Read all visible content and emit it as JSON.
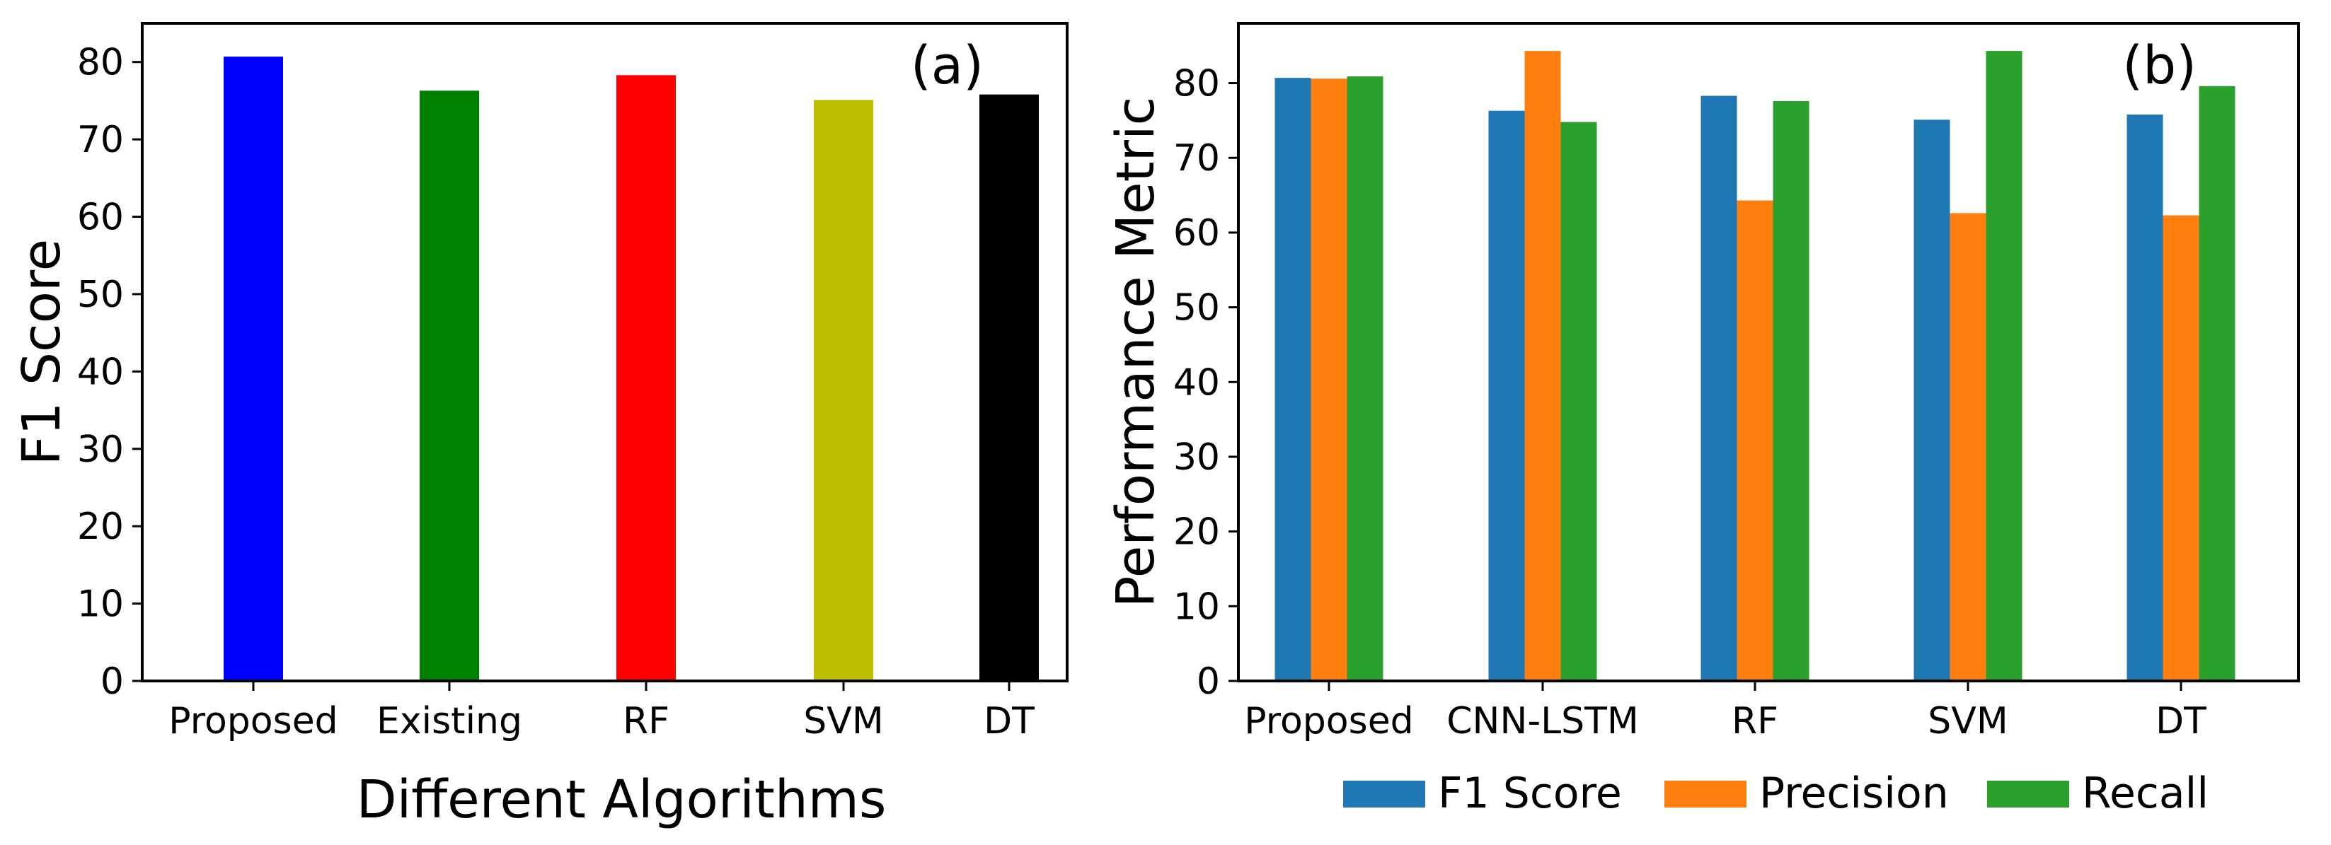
{
  "chart_data": [
    {
      "type": "bar",
      "panel_label": "(a)",
      "title": "",
      "xlabel": "Different Algorithms",
      "ylabel": "F1 Score",
      "categories": [
        "Proposed",
        "Existing",
        "RF",
        "SVM",
        "DT"
      ],
      "values": [
        80.7,
        76.3,
        78.3,
        75.1,
        75.8
      ],
      "bar_colors": [
        "#0000ff",
        "#008000",
        "#ff0000",
        "#bfbf00",
        "#000000"
      ],
      "ylim": [
        0,
        85
      ],
      "yticks": [
        0,
        10,
        20,
        30,
        40,
        50,
        60,
        70,
        80
      ],
      "grid": false
    },
    {
      "type": "bar",
      "panel_label": "(b)",
      "title": "",
      "xlabel": "",
      "ylabel": "Performance Metric",
      "categories": [
        "Proposed",
        "CNN-LSTM",
        "RF",
        "SVM",
        "DT"
      ],
      "series": [
        {
          "name": "F1 Score",
          "color": "#1f77b4",
          "values": [
            80.7,
            76.3,
            78.3,
            75.1,
            75.8
          ]
        },
        {
          "name": "Precision",
          "color": "#ff7f0e",
          "values": [
            80.6,
            84.3,
            64.3,
            62.6,
            62.3
          ]
        },
        {
          "name": "Recall",
          "color": "#2ca02c",
          "values": [
            80.9,
            74.8,
            77.6,
            84.3,
            79.6
          ]
        }
      ],
      "ylim": [
        0,
        88
      ],
      "yticks": [
        0,
        10,
        20,
        30,
        40,
        50,
        60,
        70,
        80
      ],
      "legend_position": "bottom",
      "grid": false
    }
  ]
}
